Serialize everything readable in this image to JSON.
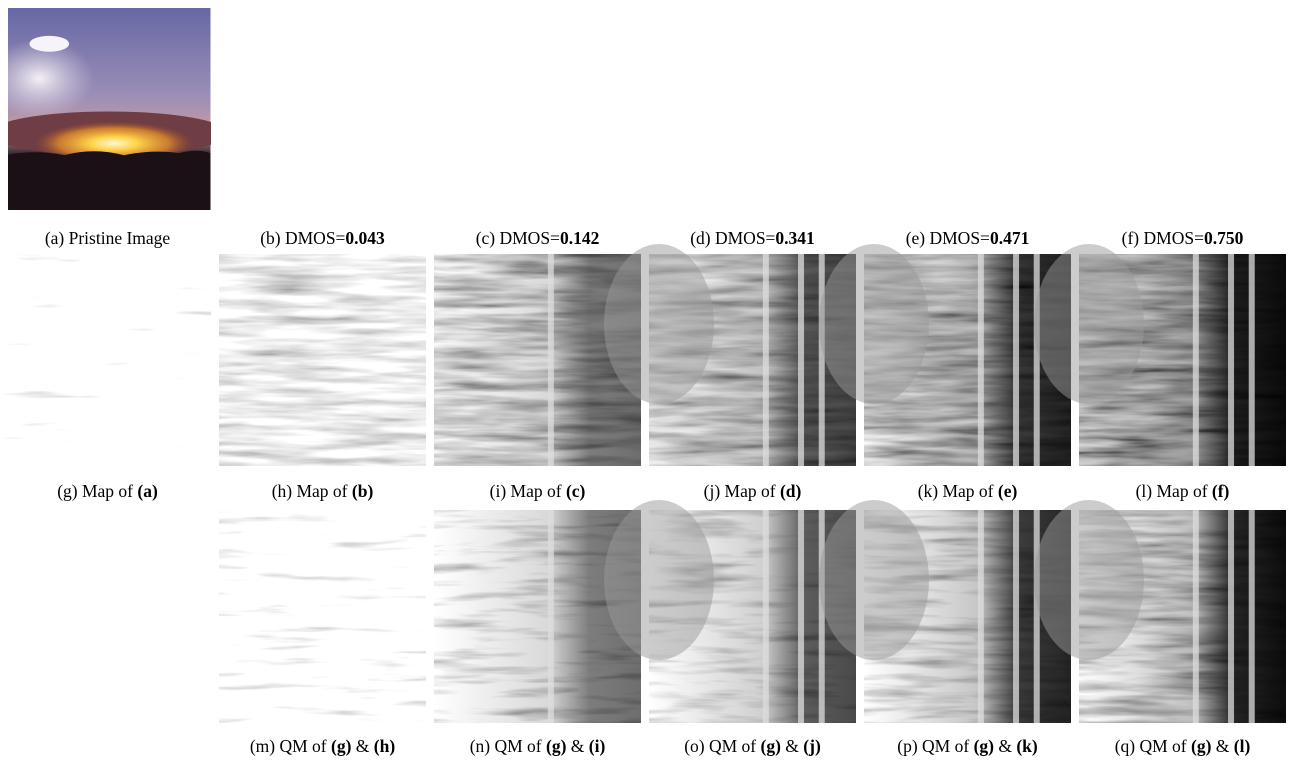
{
  "rows": [
    {
      "panels": [
        {
          "caption": [
            "(a) Pristine Image"
          ]
        },
        {
          "caption": [
            "(b) DMOS=",
            "0.043"
          ]
        },
        {
          "caption": [
            "(c) DMOS=",
            "0.142"
          ]
        },
        {
          "caption": [
            "(d) DMOS=",
            "0.341"
          ]
        },
        {
          "caption": [
            "(e) DMOS=",
            "0.471"
          ]
        },
        {
          "caption": [
            "(f) DMOS=",
            "0.750"
          ]
        }
      ]
    },
    {
      "panels": [
        {
          "caption": [
            "(g) Map of ",
            "(a)"
          ]
        },
        {
          "caption": [
            "(h) Map of ",
            "(b)"
          ]
        },
        {
          "caption": [
            "(i) Map of ",
            "(c)"
          ]
        },
        {
          "caption": [
            "(j) Map of ",
            "(d)"
          ]
        },
        {
          "caption": [
            "(k) Map of ",
            "(e)"
          ]
        },
        {
          "caption": [
            "(l) Map of ",
            "(f)"
          ]
        }
      ]
    },
    {
      "panels": [
        {
          "caption": [
            "(m) QM of ",
            "(g)",
            " & ",
            "(h)"
          ]
        },
        {
          "caption": [
            "(n) QM of ",
            "(g)",
            " & ",
            "(i)"
          ]
        },
        {
          "caption": [
            "(o) QM of ",
            "(g)",
            " & ",
            "(j)"
          ]
        },
        {
          "caption": [
            "(p) QM of ",
            "(g)",
            " & ",
            "(k)"
          ]
        },
        {
          "caption": [
            "(q) QM of ",
            "(g)",
            " & ",
            "(l)"
          ]
        }
      ]
    }
  ]
}
